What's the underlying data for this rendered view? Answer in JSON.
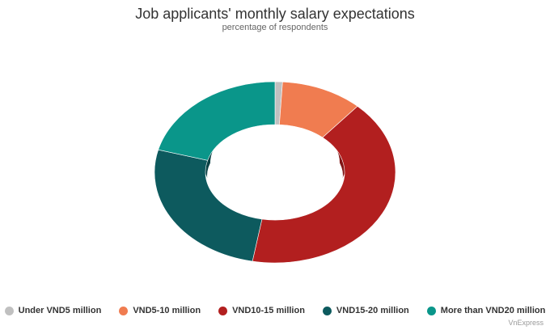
{
  "chart_data": {
    "type": "pie",
    "title": "Job applicants' monthly salary expectations",
    "subtitle": "percentage of respondents",
    "categories": [
      "Under VND5 million",
      "VND5-10 million",
      "VND10-15 million",
      "VND15-20 million",
      "More than VND20 million"
    ],
    "values": [
      1,
      11,
      41,
      26,
      21
    ],
    "colors": [
      "#c0c0c0",
      "#f07c50",
      "#b21f1f",
      "#0d5a5e",
      "#0a968a"
    ],
    "style": "3d-donut",
    "legend_position": "bottom"
  },
  "credit": "VnExpress"
}
